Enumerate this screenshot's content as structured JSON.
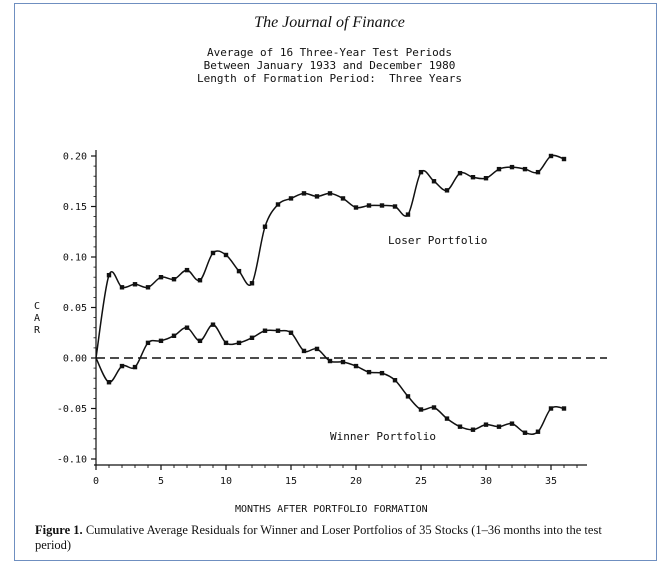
{
  "header": {
    "journal": "The Journal of Finance",
    "subtitle_lines": [
      "Average of 16 Three-Year Test Periods",
      "Between January 1933 and December 1980",
      "Length of Formation Period:  Three Years"
    ]
  },
  "caption": {
    "label": "Figure 1.",
    "text": "Cumulative Average Residuals for Winner and Loser Portfolios of 35 Stocks (1–36 months into the test period)"
  },
  "chart_data": {
    "type": "line",
    "xlabel": "MONTHS AFTER PORTFOLIO FORMATION",
    "ylabel": "CAR",
    "xlim": [
      0,
      37
    ],
    "ylim": [
      -0.1,
      0.2
    ],
    "xticks": [
      "0",
      "5",
      "10",
      "15",
      "20",
      "25",
      "30",
      "35"
    ],
    "yticks": [
      "0.20",
      "0.15",
      "0.10",
      "0.05",
      "0.00",
      "-0.05",
      "-0.10"
    ],
    "reference_line": 0.0,
    "x": [
      0,
      1,
      2,
      3,
      4,
      5,
      6,
      7,
      8,
      9,
      10,
      11,
      12,
      13,
      14,
      15,
      16,
      17,
      18,
      19,
      20,
      21,
      22,
      23,
      24,
      25,
      26,
      27,
      28,
      29,
      30,
      31,
      32,
      33,
      34,
      35,
      36
    ],
    "series": [
      {
        "name": "Loser Portfolio",
        "values": [
          0.0,
          0.082,
          0.07,
          0.073,
          0.07,
          0.08,
          0.078,
          0.087,
          0.077,
          0.104,
          0.102,
          0.086,
          0.074,
          0.13,
          0.152,
          0.158,
          0.163,
          0.16,
          0.163,
          0.158,
          0.149,
          0.151,
          0.151,
          0.15,
          0.142,
          0.184,
          0.175,
          0.166,
          0.183,
          0.179,
          0.178,
          0.187,
          0.189,
          0.187,
          0.184,
          0.2,
          0.197
        ]
      },
      {
        "name": "Winner Portfolio",
        "values": [
          0.0,
          -0.024,
          -0.008,
          -0.009,
          0.015,
          0.017,
          0.022,
          0.03,
          0.017,
          0.033,
          0.015,
          0.015,
          0.02,
          0.027,
          0.027,
          0.025,
          0.007,
          0.009,
          -0.003,
          -0.004,
          -0.008,
          -0.014,
          -0.015,
          -0.022,
          -0.038,
          -0.051,
          -0.049,
          -0.06,
          -0.068,
          -0.071,
          -0.066,
          -0.068,
          -0.065,
          -0.074,
          -0.073,
          -0.05,
          -0.05
        ]
      }
    ],
    "annotations": [
      "Loser Portfolio",
      "Winner Portfolio"
    ],
    "colors": {
      "line": "#111111",
      "frame": "#6f8fc0"
    }
  }
}
